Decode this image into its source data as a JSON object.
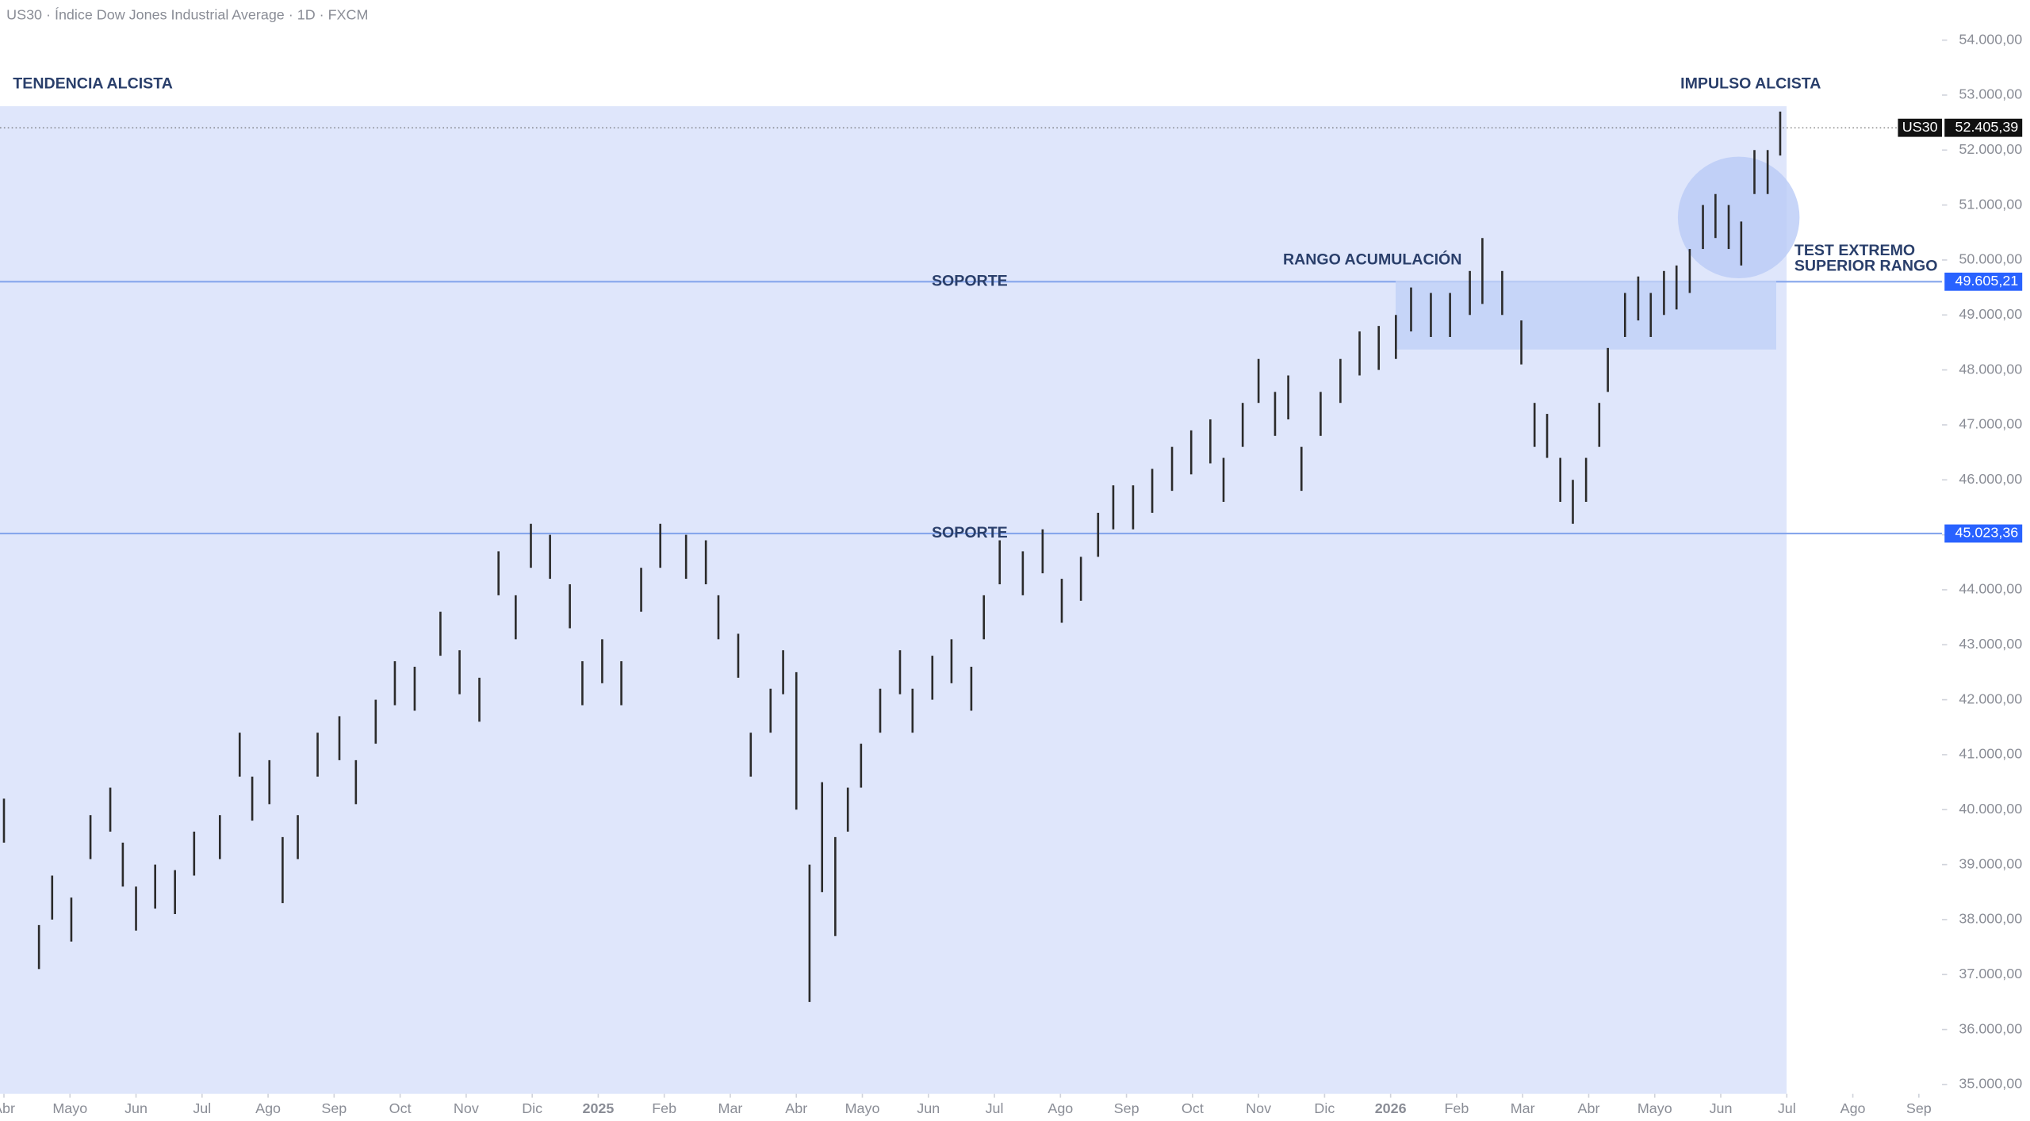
{
  "chart_data": {
    "type": "range",
    "title": "US30 · Índice Dow Jones Industrial Average · 1D · FXCM",
    "annotations": [
      "TENDENCIA ALCISTA",
      "IMPULSO ALCISTA",
      "RANGO ACUMULACIÓN",
      "TEST EXTREMO",
      "SUPERIOR RANGO"
    ],
    "levels": [
      {
        "name": "SOPORTE",
        "value": 49605.21,
        "label": "49.605,21"
      },
      {
        "name": "SOPORTE",
        "value": 45023.36,
        "label": "45.023,36"
      }
    ],
    "last_price": {
      "name": "US30",
      "value": 52405.39,
      "label": "52.405,39"
    },
    "color": "#2b2b2b",
    "xlim": [
      -0.06,
      29.35
    ],
    "ylim": [
      34830,
      54730
    ],
    "xticks": [
      {
        "value": 0,
        "label": "Abr"
      },
      {
        "value": 1,
        "label": "Mayo"
      },
      {
        "value": 2,
        "label": "Jun"
      },
      {
        "value": 3,
        "label": "Jul"
      },
      {
        "value": 4,
        "label": "Ago"
      },
      {
        "value": 5,
        "label": "Sep"
      },
      {
        "value": 6,
        "label": "Oct"
      },
      {
        "value": 7,
        "label": "Nov"
      },
      {
        "value": 8,
        "label": "Dic"
      },
      {
        "value": 9,
        "label": "2025"
      },
      {
        "value": 10,
        "label": "Feb"
      },
      {
        "value": 11,
        "label": "Mar"
      },
      {
        "value": 12,
        "label": "Abr"
      },
      {
        "value": 13,
        "label": "Mayo"
      },
      {
        "value": 14,
        "label": "Jun"
      },
      {
        "value": 15,
        "label": "Jul"
      },
      {
        "value": 16,
        "label": "Ago"
      },
      {
        "value": 17,
        "label": "Sep"
      },
      {
        "value": 18,
        "label": "Oct"
      },
      {
        "value": 19,
        "label": "Nov"
      },
      {
        "value": 20,
        "label": "Dic"
      },
      {
        "value": 21,
        "label": "2026"
      },
      {
        "value": 22,
        "label": "Feb"
      },
      {
        "value": 23,
        "label": "Mar"
      },
      {
        "value": 24,
        "label": "Abr"
      },
      {
        "value": 25,
        "label": "Mayo"
      },
      {
        "value": 26,
        "label": "Jun"
      },
      {
        "value": 27,
        "label": "Jul"
      },
      {
        "value": 28,
        "label": "Ago"
      },
      {
        "value": 29,
        "label": "Sep"
      }
    ],
    "yticks": [
      {
        "value": 35000,
        "label": "35.000,00"
      },
      {
        "value": 36000,
        "label": "36.000,00"
      },
      {
        "value": 37000,
        "label": "37.000,00"
      },
      {
        "value": 38000,
        "label": "38.000,00"
      },
      {
        "value": 39000,
        "label": "39.000,00"
      },
      {
        "value": 40000,
        "label": "40.000,00"
      },
      {
        "value": 41000,
        "label": "41.000,00"
      },
      {
        "value": 42000,
        "label": "42.000,00"
      },
      {
        "value": 43000,
        "label": "43.000,00"
      },
      {
        "value": 44000,
        "label": "44.000,00"
      },
      {
        "value": 45000,
        "label": "45.000,00"
      },
      {
        "value": 46000,
        "label": "46.000,00"
      },
      {
        "value": 47000,
        "label": "47.000,00"
      },
      {
        "value": 48000,
        "label": "48.000,00"
      },
      {
        "value": 49000,
        "label": "49.000,00"
      },
      {
        "value": 50000,
        "label": "50.000,00"
      },
      {
        "value": 51000,
        "label": "51.000,00"
      },
      {
        "value": 52000,
        "label": "52.000,00"
      },
      {
        "value": 53000,
        "label": "53.000,00"
      },
      {
        "value": 54000,
        "label": "54.000,00"
      }
    ],
    "x": [
      0,
      0.53,
      0.73,
      1.02,
      1.31,
      1.61,
      1.8,
      2.0,
      2.29,
      2.59,
      2.88,
      3.27,
      3.57,
      3.76,
      4.02,
      4.22,
      4.45,
      4.75,
      5.08,
      5.33,
      5.63,
      5.92,
      6.22,
      6.61,
      6.9,
      7.2,
      7.49,
      7.75,
      7.98,
      8.27,
      8.57,
      8.76,
      9.06,
      9.35,
      9.65,
      9.94,
      10.33,
      10.63,
      10.82,
      11.12,
      11.31,
      11.61,
      11.8,
      12.0,
      12.2,
      12.39,
      12.59,
      12.78,
      12.98,
      13.27,
      13.57,
      13.76,
      14.06,
      14.35,
      14.65,
      14.84,
      15.08,
      15.43,
      15.73,
      16.02,
      16.31,
      16.57,
      16.8,
      17.1,
      17.39,
      17.69,
      17.98,
      18.27,
      18.47,
      18.76,
      19.0,
      19.25,
      19.45,
      19.65,
      19.94,
      20.24,
      20.53,
      20.82,
      21.08,
      21.31,
      21.61,
      21.9,
      22.2,
      22.39,
      22.69,
      22.98,
      23.18,
      23.37,
      23.57,
      23.76,
      23.96,
      24.16,
      24.29,
      24.55,
      24.75,
      24.94,
      25.14,
      25.33,
      25.53,
      25.73,
      25.92,
      26.12,
      26.31,
      26.51,
      26.71,
      26.9
    ],
    "high": [
      40200,
      37900,
      38800,
      38400,
      39900,
      40400,
      39400,
      38600,
      39000,
      38900,
      39600,
      39900,
      41400,
      40600,
      40900,
      39500,
      39900,
      41400,
      41700,
      40900,
      42000,
      42700,
      42600,
      43600,
      42900,
      42400,
      44700,
      43900,
      45200,
      45000,
      44100,
      42700,
      43100,
      42700,
      44400,
      45200,
      45000,
      44900,
      43900,
      43200,
      41400,
      42200,
      42900,
      42500,
      39000,
      40500,
      39500,
      40400,
      41200,
      42200,
      42900,
      42200,
      42800,
      43100,
      42600,
      43900,
      44900,
      44700,
      45100,
      44200,
      44600,
      45400,
      45900,
      45900,
      46200,
      46600,
      46900,
      47100,
      46400,
      47400,
      48200,
      47600,
      47900,
      46600,
      47600,
      48200,
      48700,
      48800,
      49000,
      49500,
      49400,
      49400,
      49800,
      50400,
      49800,
      48900,
      47400,
      47200,
      46400,
      46000,
      46400,
      47400,
      48400,
      49400,
      49700,
      49400,
      49800,
      49900,
      50200,
      51000,
      51200,
      51000,
      50700,
      52000,
      52000,
      52700
    ],
    "low": [
      39400,
      37100,
      38000,
      37600,
      39100,
      39600,
      38600,
      37800,
      38200,
      38100,
      38800,
      39100,
      40600,
      39800,
      40100,
      38300,
      39100,
      40600,
      40900,
      40100,
      41200,
      41900,
      41800,
      42800,
      42100,
      41600,
      43900,
      43100,
      44400,
      44200,
      43300,
      41900,
      42300,
      41900,
      43600,
      44400,
      44200,
      44100,
      43100,
      42400,
      40600,
      41400,
      42100,
      40000,
      36500,
      38500,
      37700,
      39600,
      40400,
      41400,
      42100,
      41400,
      42000,
      42300,
      41800,
      43100,
      44100,
      43900,
      44300,
      43400,
      43800,
      44600,
      45100,
      45100,
      45400,
      45800,
      46100,
      46300,
      45600,
      46600,
      47400,
      46800,
      47100,
      45800,
      46800,
      47400,
      47900,
      48000,
      48200,
      48700,
      48600,
      48600,
      49000,
      49200,
      49000,
      48100,
      46600,
      46400,
      45600,
      45200,
      45600,
      46600,
      47600,
      48600,
      48900,
      48600,
      49000,
      49100,
      49400,
      50200,
      50400,
      50200,
      49900,
      51200,
      51200,
      51900
    ]
  }
}
